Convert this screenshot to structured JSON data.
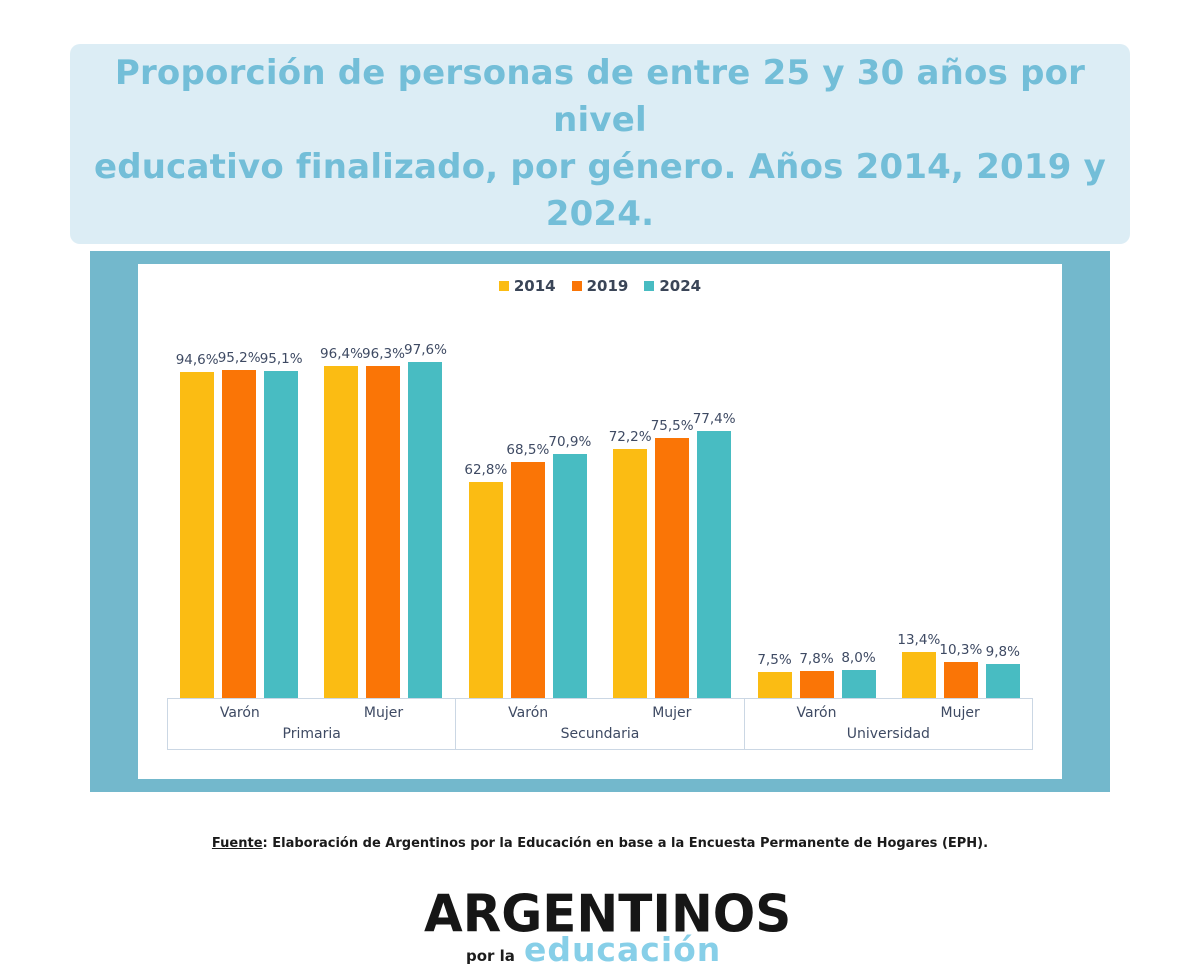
{
  "header": {
    "title_line1": "Proporción de personas de entre 25 y 30 años por nivel",
    "title_line2": "educativo finalizado, por género. Años 2014, 2019 y 2024.",
    "title_bg": "#dcedf5",
    "title_color": "#73bed8"
  },
  "chart_data": {
    "type": "bar",
    "title": "Proporción de personas de entre 25 y 30 años por nivel educativo finalizado, por género. Años 2014, 2019 y 2024.",
    "xlabel": "",
    "ylabel": "",
    "ylim": [
      0,
      100
    ],
    "grid": false,
    "legend_position": "top",
    "value_suffix": "%",
    "series": [
      {
        "name": "2014",
        "color": "#FBBC13"
      },
      {
        "name": "2019",
        "color": "#FA7506"
      },
      {
        "name": "2024",
        "color": "#48BCC2"
      }
    ],
    "groups": [
      {
        "category": "Primaria",
        "subgroups": [
          {
            "label": "Varón",
            "values": [
              94.6,
              95.2,
              95.1
            ],
            "display": [
              "94,6%",
              "95,2%",
              "95,1%"
            ]
          },
          {
            "label": "Mujer",
            "values": [
              96.4,
              96.3,
              97.6
            ],
            "display": [
              "96,4%",
              "96,3%",
              "97,6%"
            ]
          }
        ]
      },
      {
        "category": "Secundaria",
        "subgroups": [
          {
            "label": "Varón",
            "values": [
              62.8,
              68.5,
              70.9
            ],
            "display": [
              "62,8%",
              "68,5%",
              "70,9%"
            ]
          },
          {
            "label": "Mujer",
            "values": [
              72.2,
              75.5,
              77.4
            ],
            "display": [
              "72,2%",
              "75,5%",
              "77,4%"
            ]
          }
        ]
      },
      {
        "category": "Universidad",
        "subgroups": [
          {
            "label": "Varón",
            "values": [
              7.5,
              7.8,
              8.0
            ],
            "display": [
              "7,5%",
              "7,8%",
              "8,0%"
            ]
          },
          {
            "label": "Mujer",
            "values": [
              13.4,
              10.3,
              9.8
            ],
            "display": [
              "13,4%",
              "10,3%",
              "9,8%"
            ]
          }
        ]
      }
    ]
  },
  "footer": {
    "fuente_label": "Fuente",
    "fuente_text": ": Elaboración de Argentinos por la Educación en base a la Encuesta Permanente de Hogares (EPH)."
  },
  "logo": {
    "line1": "ARGENTINOS",
    "line2_small": "por la",
    "line2_accent": "educación",
    "accent_color": "#87cfe8"
  },
  "colors": {
    "frame": "#73b8cc",
    "axis_border": "#cbd7e4",
    "label": "#3e4a63"
  }
}
